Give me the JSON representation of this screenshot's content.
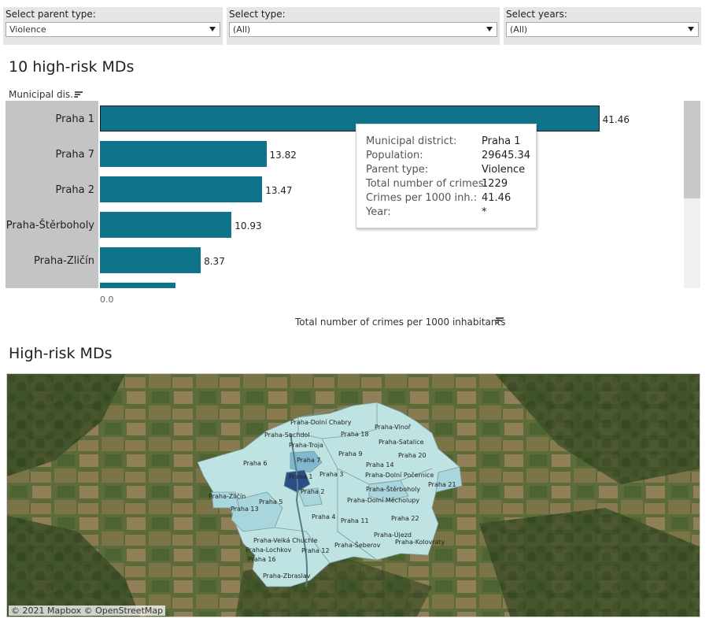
{
  "filters": [
    {
      "label": "Select parent type:",
      "value": "Violence"
    },
    {
      "label": "Select type:",
      "value": "(All)"
    },
    {
      "label": "Select years:",
      "value": "(All)"
    }
  ],
  "bar_section": {
    "title": "10 high-risk MDs",
    "column_header": "Municipal dis..",
    "x_axis_label": "Total number of crimes per 1000 inhabitants",
    "x_tick": "0.0"
  },
  "chart_data": {
    "type": "bar",
    "orientation": "horizontal",
    "categories": [
      "Praha 1",
      "Praha 7",
      "Praha 2",
      "Praha-Štěrboholy",
      "Praha-Zličín"
    ],
    "values": [
      41.46,
      13.82,
      13.47,
      10.93,
      8.37
    ],
    "value_labels": [
      "41.46",
      "13.82",
      "13.47",
      "10.93",
      "8.37"
    ],
    "xlabel": "Total number of crimes per 1000 inhabitants",
    "xlim": [
      0,
      43.9
    ],
    "bar_color": "#0f7389",
    "partially_visible_next_value": 6.3
  },
  "tooltip": {
    "rows": [
      {
        "label": "Municipal district:",
        "value": "Praha 1"
      },
      {
        "label": "Population:",
        "value": "29645.34"
      },
      {
        "label": "Parent type:",
        "value": "Violence"
      },
      {
        "label": "Total number of crimes:",
        "value": "1229"
      },
      {
        "label": "Crimes per 1000 inh.:",
        "value": "41.46"
      },
      {
        "label": "Year:",
        "value": "*"
      }
    ]
  },
  "map_section": {
    "title": "High-risk MDs",
    "attribution": "© 2021 Mapbox  © OpenStreetMap",
    "district_labels": [
      "Praha-Dolní Chabry",
      "Praha-Suchdol",
      "Praha 18",
      "Praha-Vinoř",
      "Praha-Troja",
      "Praha-Satalice",
      "Praha 9",
      "Praha 20",
      "Praha 7",
      "Praha 6",
      "Praha 14",
      "Praha 1",
      "Praha 3",
      "Praha-Dolní Počernice",
      "Praha 21",
      "Praha 2",
      "Praha-Štěrboholy",
      "Praha-Zličín",
      "Praha 5",
      "Praha-Dolní Měcholupy",
      "Praha 13",
      "Praha 4",
      "Praha 11",
      "Praha 22",
      "Praha-Újezd",
      "Praha-Velká Chuchle",
      "Praha-Šeberov",
      "Praha-Kolovraty",
      "Praha-Lochkov",
      "Praha 12",
      "Praha 16",
      "Praha-Zbraslav"
    ],
    "colors": {
      "low": "#bfe3e3",
      "medium": "#7fb8cf",
      "high": "#2a4f86",
      "satellite_base": "#4a5a30"
    }
  }
}
